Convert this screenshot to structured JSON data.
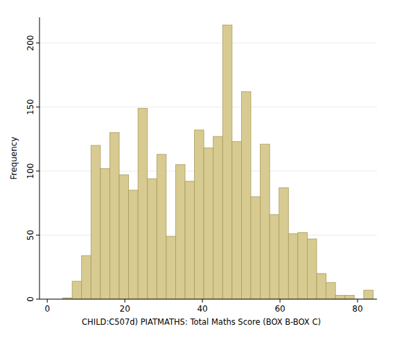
{
  "chart_data": {
    "type": "histogram",
    "x_label": "CHILD:C507d) PIATMATHS: Total Maths Score (BOX B-BOX C)",
    "y_label": "Frequency",
    "bins": [
      4,
      6.42,
      8.85,
      11.27,
      13.7,
      16.12,
      18.55,
      20.97,
      23.39,
      25.82,
      28.24,
      30.67,
      33.09,
      35.52,
      37.94,
      40.36,
      42.79,
      45.21,
      47.64,
      50.06,
      52.48,
      54.91,
      57.33,
      59.76,
      62.18,
      64.61,
      67.03,
      69.45,
      71.88,
      74.3,
      76.73,
      79.15,
      81.58,
      84
    ],
    "values": [
      1,
      14,
      34,
      120,
      102,
      130,
      97,
      85,
      149,
      94,
      113,
      49,
      105,
      92,
      132,
      118,
      127,
      214,
      123,
      162,
      80,
      121,
      66,
      87,
      51,
      52,
      47,
      20,
      13,
      3,
      3,
      0,
      7
    ],
    "color": "#d8cb91",
    "xlim": [
      -2,
      85
    ],
    "xticks": [
      0,
      20,
      40,
      60,
      80
    ],
    "ylim": [
      0,
      220
    ],
    "yticks": [
      0,
      50,
      100,
      150,
      200
    ],
    "grid": true
  }
}
